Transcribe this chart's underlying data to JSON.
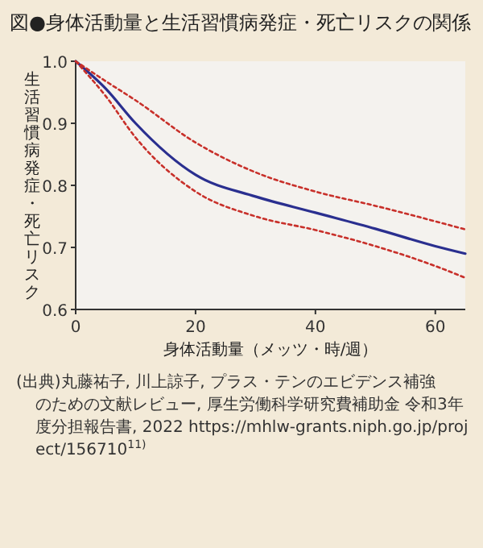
{
  "chart_data": {
    "type": "line",
    "title": "図●身体活動量と生活習慣病発症・死亡リスクの関係",
    "xlabel": "身体活動量（メッツ・時/週）",
    "ylabel": "生活習慣病発症・死亡リスク",
    "x": [
      0,
      5,
      10,
      20,
      30,
      40,
      50,
      60,
      65
    ],
    "series": [
      {
        "color": "#2a2f8f",
        "line_style": "solid",
        "values": [
          1.0,
          0.956,
          0.9,
          0.817,
          0.782,
          0.756,
          0.73,
          0.702,
          0.69
        ]
      },
      {
        "color": "#c8302a",
        "line_style": "dotted",
        "values": [
          1.0,
          0.968,
          0.937,
          0.869,
          0.821,
          0.79,
          0.767,
          0.742,
          0.729
        ]
      },
      {
        "color": "#c8302a",
        "line_style": "dotted",
        "values": [
          1.0,
          0.944,
          0.877,
          0.79,
          0.75,
          0.728,
          0.702,
          0.67,
          0.651
        ]
      }
    ],
    "xlim": [
      0,
      65
    ],
    "xticks": [
      0,
      20,
      40,
      60
    ],
    "ylim": [
      0.6,
      1.0
    ],
    "yticks": [
      {
        "value": 0.6,
        "label": "0.6"
      },
      {
        "value": 0.7,
        "label": "0.7"
      },
      {
        "value": 0.8,
        "label": "0.8"
      },
      {
        "value": 0.9,
        "label": "0.9"
      },
      {
        "value": 1.0,
        "label": "1.0"
      }
    ],
    "grid": false,
    "annotations": [
      "(出典)丸藤祐子, 川上諒子, プラス・テンのエビデンス補強のための文献レビュー, 厚生労働科学研究費補助金 令和3年度分担報告書, 2022 https://mhlw-grants.niph.go.jp/project/156710$^{11)}$"
    ]
  }
}
